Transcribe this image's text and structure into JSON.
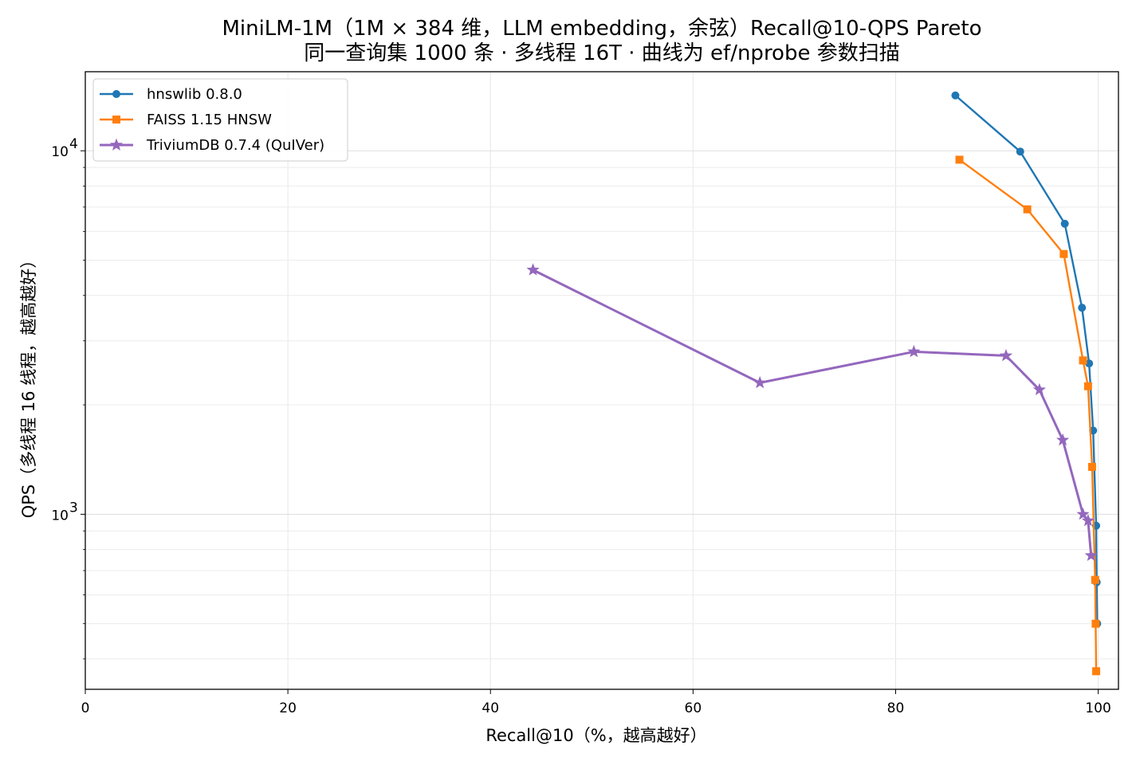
{
  "chart_data": {
    "type": "line",
    "title": "MiniLM-1M（1M × 384 维，LLM embedding，余弦）Recall@10-QPS Pareto",
    "subtitle": "同一查询集 1000 条 · 多线程 16T · 曲线为 ef/nprobe 参数扫描",
    "xlabel": "Recall@10（%，越高越好）",
    "ylabel": "QPS（多线程 16 线程，越高越好）",
    "xlim": [
      0,
      102
    ],
    "ylim": [
      330,
      16500
    ],
    "yscale": "log",
    "grid": true,
    "legend_position": "upper-left",
    "x_ticks": [
      0,
      20,
      40,
      60,
      80,
      100
    ],
    "x_tick_labels": [
      "0",
      "20",
      "40",
      "60",
      "80",
      "100"
    ],
    "y_ticks": [
      {
        "value": 1000,
        "base": "10",
        "exp": "3"
      },
      {
        "value": 10000,
        "base": "10",
        "exp": "4"
      }
    ],
    "series": [
      {
        "name": "hnswlib 0.8.0",
        "color": "#1f77b4",
        "marker": "circle",
        "x": [
          85.9,
          92.3,
          96.7,
          98.4,
          99.1,
          99.5,
          99.8,
          99.85,
          99.9
        ],
        "y": [
          14200,
          9950,
          6300,
          3700,
          2600,
          1700,
          930,
          650,
          500
        ]
      },
      {
        "name": "FAISS 1.15 HNSW",
        "color": "#ff7f0e",
        "marker": "square",
        "x": [
          86.3,
          93.0,
          96.6,
          98.5,
          99.0,
          99.4,
          99.7,
          99.75,
          99.8
        ],
        "y": [
          9450,
          6900,
          5200,
          2650,
          2250,
          1350,
          660,
          500,
          370
        ]
      },
      {
        "name": "TriviumDB 0.7.4 (QuIVer)",
        "color": "#9467bd",
        "marker": "star",
        "x": [
          44.2,
          66.6,
          81.8,
          90.9,
          94.2,
          96.5,
          98.5,
          99.0,
          99.3
        ],
        "y": [
          4700,
          2300,
          2800,
          2730,
          2200,
          1600,
          1000,
          960,
          770
        ]
      }
    ]
  }
}
